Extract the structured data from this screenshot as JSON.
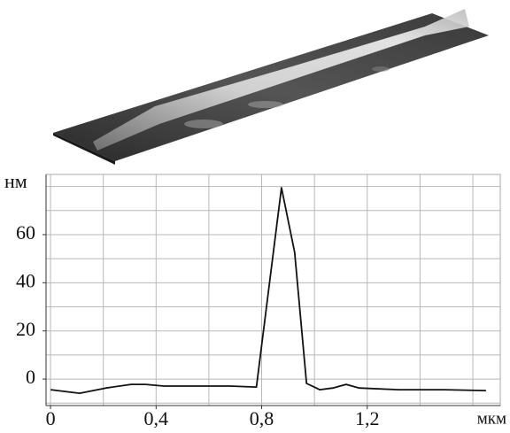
{
  "chart_data": {
    "type": "line",
    "y_label": "нм",
    "x_label": "мкм",
    "x": [
      0,
      0.11,
      0.21,
      0.305,
      0.36,
      0.43,
      0.68,
      0.78,
      0.875,
      0.925,
      0.97,
      1.02,
      1.07,
      1.12,
      1.17,
      1.32,
      1.49,
      1.65
    ],
    "series": [
      {
        "color": "#111111",
        "values": [
          -4.4,
          -5.9,
          -3.7,
          -2.2,
          -2.2,
          -2.9,
          -2.9,
          -3.3,
          79.5,
          52.6,
          -1.8,
          -4.4,
          -3.7,
          -2.2,
          -3.7,
          -4.4,
          -4.4,
          -4.8
        ]
      }
    ],
    "xlim": [
      -0.017,
      1.704
    ],
    "xticks": [
      0,
      {
        "value": 0.4,
        "label": "0,4"
      },
      {
        "value": 0.8,
        "label": "0,8"
      },
      {
        "value": 1.2,
        "label": "1,2"
      }
    ],
    "xgrid": [
      0,
      0.2,
      0.4,
      0.6,
      0.8,
      1.0,
      1.2,
      1.4,
      1.6
    ],
    "ylim": [
      -11,
      85
    ],
    "yticks": [
      0,
      20,
      40,
      60
    ],
    "ygrid": [
      -10,
      0,
      10,
      20,
      30,
      40,
      50,
      60,
      70,
      80
    ],
    "grid": true
  }
}
